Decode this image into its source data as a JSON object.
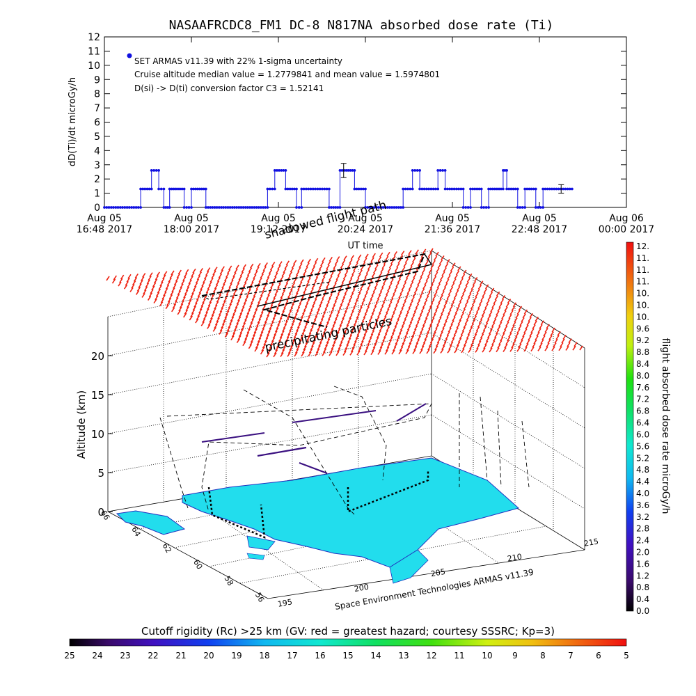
{
  "chart_data": [
    {
      "type": "scatter",
      "title": "NASAAFRCDC8_FM1 DC-8   N817NA absorbed dose rate (Ti)",
      "ylabel": "dD(Ti)/dt microGy/h",
      "xlabel": "UT time",
      "ylim": [
        0,
        12
      ],
      "y_ticks": [
        "0",
        "1",
        "2",
        "3",
        "4",
        "5",
        "6",
        "7",
        "8",
        "9",
        "10",
        "11",
        "12"
      ],
      "x_ticks": [
        {
          "line1": "Aug 05",
          "line2": "16:48 2017"
        },
        {
          "line1": "Aug 05",
          "line2": "18:00 2017"
        },
        {
          "line1": "Aug 05",
          "line2": "19:12 2017"
        },
        {
          "line1": "Aug 05",
          "line2": "20:24 2017"
        },
        {
          "line1": "Aug 05",
          "line2": "21:36 2017"
        },
        {
          "line1": "Aug 05",
          "line2": "22:48 2017"
        },
        {
          "line1": "Aug 06",
          "line2": "00:00 2017"
        }
      ],
      "x_range_hours": [
        16.8,
        24.0
      ],
      "legend": {
        "series": "SET ARMAS v11.39 with 22% 1-sigma uncertainty",
        "line2": "Cruise altitude median value = 1.2779841 and mean value = 1.5974801",
        "line3": "D(si) -> D(ti) conversion factor C3 = 1.52141",
        "placement": "top-left",
        "marker_color": "#1010e0"
      },
      "series_color": "#1010e0",
      "segments": [
        {
          "t": [
            16.8,
            17.3
          ],
          "v": 0
        },
        {
          "t": [
            17.3,
            17.45
          ],
          "v": 1.3
        },
        {
          "t": [
            17.45,
            17.55
          ],
          "v": 2.6
        },
        {
          "t": [
            17.55,
            17.62
          ],
          "v": 1.3
        },
        {
          "t": [
            17.62,
            17.7
          ],
          "v": 0
        },
        {
          "t": [
            17.7,
            17.9
          ],
          "v": 1.3
        },
        {
          "t": [
            17.9,
            18.0
          ],
          "v": 0
        },
        {
          "t": [
            18.0,
            18.2
          ],
          "v": 1.3
        },
        {
          "t": [
            18.2,
            19.05
          ],
          "v": 0
        },
        {
          "t": [
            19.05,
            19.15
          ],
          "v": 1.3
        },
        {
          "t": [
            19.15,
            19.3
          ],
          "v": 2.6
        },
        {
          "t": [
            19.3,
            19.45
          ],
          "v": 1.3
        },
        {
          "t": [
            19.45,
            19.52
          ],
          "v": 0
        },
        {
          "t": [
            19.52,
            19.9
          ],
          "v": 1.3
        },
        {
          "t": [
            19.9,
            20.05
          ],
          "v": 0
        },
        {
          "t": [
            20.05,
            20.25
          ],
          "v": 2.6
        },
        {
          "t": [
            20.25,
            20.4
          ],
          "v": 1.3
        },
        {
          "t": [
            20.4,
            20.92
          ],
          "v": 0
        },
        {
          "t": [
            20.92,
            21.05
          ],
          "v": 1.3
        },
        {
          "t": [
            21.05,
            21.15
          ],
          "v": 2.6
        },
        {
          "t": [
            21.15,
            21.4
          ],
          "v": 1.3
        },
        {
          "t": [
            21.4,
            21.5
          ],
          "v": 2.6
        },
        {
          "t": [
            21.5,
            21.75
          ],
          "v": 1.3
        },
        {
          "t": [
            21.75,
            21.85
          ],
          "v": 0
        },
        {
          "t": [
            21.85,
            22.0
          ],
          "v": 1.3
        },
        {
          "t": [
            22.0,
            22.1
          ],
          "v": 0
        },
        {
          "t": [
            22.1,
            22.3
          ],
          "v": 1.3
        },
        {
          "t": [
            22.3,
            22.35
          ],
          "v": 2.6
        },
        {
          "t": [
            22.35,
            22.5
          ],
          "v": 1.3
        },
        {
          "t": [
            22.5,
            22.6
          ],
          "v": 0
        },
        {
          "t": [
            22.6,
            22.75
          ],
          "v": 1.3
        },
        {
          "t": [
            22.75,
            22.85
          ],
          "v": 0
        },
        {
          "t": [
            22.85,
            23.25
          ],
          "v": 1.3
        }
      ],
      "error_bars": [
        {
          "t": 20.1,
          "v": 2.6,
          "err": 0.5
        },
        {
          "t": 23.1,
          "v": 1.3,
          "err": 0.3
        }
      ]
    },
    {
      "type": "heatmap",
      "description_labels": {
        "zlabel": "Altitude (km)",
        "z_ticks": [
          "0",
          "5",
          "10",
          "15",
          "20"
        ],
        "lat_ticks": [
          "66",
          "64",
          "62",
          "60",
          "58",
          "56"
        ],
        "lon_ticks": [
          "195",
          "200",
          "205",
          "210",
          "215"
        ],
        "credit": "Space Environment Technologies ARMAS v11.39",
        "annotations": [
          "shadowed flight path",
          "precipitating particles"
        ]
      },
      "dose_colorbar": {
        "title": "flight absorbed dose rate microGy/h",
        "ticks": [
          "12.",
          "11.",
          "11.",
          "11.",
          "10.",
          "10.",
          "10.",
          "9.6",
          "9.2",
          "8.8",
          "8.4",
          "8.0",
          "7.6",
          "7.2",
          "6.8",
          "6.4",
          "6.0",
          "5.6",
          "5.2",
          "4.8",
          "4.4",
          "4.0",
          "3.6",
          "3.2",
          "2.8",
          "2.4",
          "2.0",
          "1.6",
          "1.2",
          "0.8",
          "0.4",
          "0.0"
        ]
      },
      "rigidity_colorbar": {
        "title": "Cutoff rigidity (Rc) >25 km (GV: red = greatest hazard; courtesy SSSRC; Kp=3)",
        "ticks": [
          "25",
          "24",
          "23",
          "22",
          "21",
          "20",
          "19",
          "18",
          "17",
          "16",
          "15",
          "14",
          "13",
          "12",
          "11",
          "10",
          "9",
          "8",
          "7",
          "6",
          "5"
        ]
      },
      "colors": {
        "cutoff_grid": "#ee2211",
        "land": "#22dded",
        "coast": "#2030c0",
        "track": "#000000",
        "track_dose": "#3a1080"
      }
    }
  ]
}
